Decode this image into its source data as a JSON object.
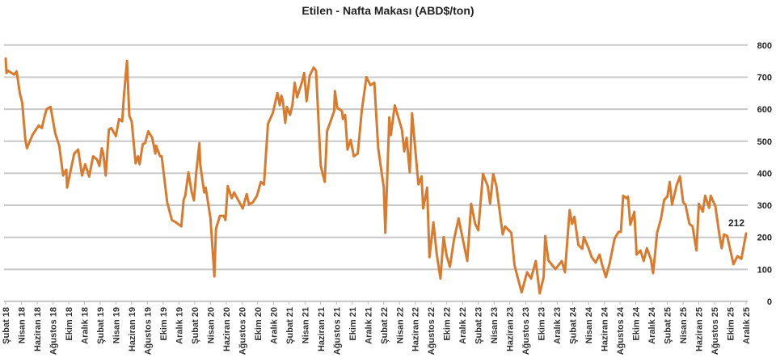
{
  "chart_data": {
    "type": "line",
    "title": "Etilen - Nafta Makası (ABD$/ton)",
    "xlabel": "",
    "ylabel": "",
    "ylim": [
      0,
      800
    ],
    "yticks": [
      0,
      100,
      200,
      300,
      400,
      500,
      600,
      700,
      800
    ],
    "y_axis_side": "right",
    "grid": true,
    "x_unit": "months since Şubat 18",
    "x_tick_labels": [
      "Şubat 18",
      "Nisan 18",
      "Haziran 18",
      "Ağustos 18",
      "Ekim 18",
      "Aralık 18",
      "Şubat 19",
      "Nisan 19",
      "Haziran 19",
      "Ağustos 19",
      "Ekim 19",
      "Aralık 19",
      "Şubat 20",
      "Nisan 20",
      "Haziran 20",
      "Ağustos 20",
      "Ekim 20",
      "Aralık 20",
      "Şubat 21",
      "Nisan 21",
      "Haziran 21",
      "Ağustos 21",
      "Ekim 21",
      "Aralık 21",
      "Şubat 22",
      "Nisan 22",
      "Haziran 22",
      "Ağustos 22",
      "Ekim 22",
      "Aralık 22",
      "Şubat 23",
      "Nisan 23",
      "Haziran 23",
      "Ağustos 23",
      "Ekim 23",
      "Aralık 23",
      "Şubat 24",
      "Nisan 24",
      "Haziran 24",
      "Ağustos 24",
      "Ekim 24",
      "Aralık 24",
      "Şubat 25",
      "Nisan 25",
      "Haziran 25",
      "Ağustos 25",
      "Ekim 25",
      "Aralık 25"
    ],
    "series": [
      {
        "name": "Etilen - Nafta Makası",
        "color": "#D97B2E",
        "last_value_label": "212",
        "points": [
          [
            0,
            758
          ],
          [
            0.1,
            713
          ],
          [
            0.3,
            720
          ],
          [
            1.1,
            708
          ],
          [
            1.4,
            718
          ],
          [
            1.8,
            650
          ],
          [
            2.1,
            620
          ],
          [
            2.5,
            504
          ],
          [
            2.7,
            478
          ],
          [
            3.4,
            519
          ],
          [
            4.2,
            549
          ],
          [
            4.6,
            541
          ],
          [
            4.9,
            574
          ],
          [
            5.2,
            600
          ],
          [
            5.7,
            607
          ],
          [
            6.3,
            524
          ],
          [
            6.8,
            486
          ],
          [
            7.3,
            393
          ],
          [
            7.7,
            411
          ],
          [
            7.8,
            355
          ],
          [
            8.7,
            461
          ],
          [
            9.2,
            474
          ],
          [
            9.7,
            393
          ],
          [
            10.1,
            428
          ],
          [
            10.6,
            390
          ],
          [
            11.1,
            453
          ],
          [
            11.6,
            443
          ],
          [
            11.9,
            423
          ],
          [
            12.2,
            478
          ],
          [
            12.4,
            461
          ],
          [
            12.7,
            393
          ],
          [
            13.1,
            536
          ],
          [
            13.4,
            541
          ],
          [
            14.0,
            516
          ],
          [
            14.4,
            569
          ],
          [
            14.8,
            562
          ],
          [
            15.0,
            637
          ],
          [
            15.4,
            751
          ],
          [
            15.7,
            579
          ],
          [
            16.0,
            562
          ],
          [
            16.5,
            431
          ],
          [
            16.8,
            453
          ],
          [
            17.0,
            428
          ],
          [
            17.4,
            491
          ],
          [
            17.7,
            494
          ],
          [
            18.1,
            531
          ],
          [
            18.6,
            511
          ],
          [
            19.0,
            461
          ],
          [
            19.1,
            486
          ],
          [
            19.6,
            453
          ],
          [
            19.8,
            453
          ],
          [
            20.5,
            310
          ],
          [
            21.1,
            254
          ],
          [
            21.6,
            247
          ],
          [
            22.3,
            234
          ],
          [
            22.6,
            317
          ],
          [
            22.8,
            330
          ],
          [
            23.2,
            403
          ],
          [
            23.6,
            343
          ],
          [
            23.9,
            315
          ],
          [
            24.2,
            403
          ],
          [
            24.6,
            494
          ],
          [
            24.7,
            428
          ],
          [
            25.2,
            340
          ],
          [
            25.4,
            355
          ],
          [
            26.0,
            259
          ],
          [
            26.5,
            78
          ],
          [
            26.7,
            227
          ],
          [
            27.2,
            267
          ],
          [
            27.7,
            267
          ],
          [
            27.9,
            254
          ],
          [
            28.2,
            360
          ],
          [
            28.7,
            322
          ],
          [
            29.0,
            340
          ],
          [
            30.1,
            290
          ],
          [
            30.6,
            335
          ],
          [
            30.9,
            302
          ],
          [
            31.4,
            310
          ],
          [
            31.9,
            330
          ],
          [
            32.4,
            373
          ],
          [
            32.8,
            365
          ],
          [
            33.3,
            554
          ],
          [
            33.9,
            587
          ],
          [
            34.5,
            650
          ],
          [
            34.8,
            612
          ],
          [
            35.0,
            642
          ],
          [
            35.2,
            625
          ],
          [
            35.5,
            557
          ],
          [
            35.7,
            607
          ],
          [
            36.1,
            582
          ],
          [
            36.4,
            612
          ],
          [
            36.7,
            683
          ],
          [
            37.0,
            637
          ],
          [
            37.6,
            683
          ],
          [
            37.9,
            713
          ],
          [
            38.2,
            625
          ],
          [
            38.6,
            705
          ],
          [
            39.1,
            730
          ],
          [
            39.4,
            720
          ],
          [
            40.0,
            423
          ],
          [
            40.5,
            373
          ],
          [
            40.8,
            531
          ],
          [
            41.7,
            594
          ],
          [
            41.8,
            657
          ],
          [
            42.1,
            604
          ],
          [
            42.7,
            594
          ],
          [
            42.8,
            569
          ],
          [
            43.1,
            582
          ],
          [
            43.4,
            474
          ],
          [
            43.8,
            504
          ],
          [
            44.2,
            453
          ],
          [
            44.7,
            461
          ],
          [
            45.2,
            594
          ],
          [
            45.8,
            700
          ],
          [
            46.3,
            675
          ],
          [
            46.8,
            683
          ],
          [
            47.3,
            478
          ],
          [
            48.0,
            355
          ],
          [
            48.2,
            214
          ],
          [
            48.7,
            574
          ],
          [
            48.9,
            519
          ],
          [
            49.4,
            612
          ],
          [
            50.3,
            536
          ],
          [
            50.6,
            468
          ],
          [
            50.9,
            511
          ],
          [
            51.3,
            403
          ],
          [
            51.6,
            587
          ],
          [
            52.4,
            365
          ],
          [
            52.8,
            390
          ],
          [
            53.0,
            290
          ],
          [
            53.5,
            355
          ],
          [
            53.8,
            138
          ],
          [
            54.3,
            247
          ],
          [
            54.7,
            151
          ],
          [
            55.2,
            71
          ],
          [
            55.6,
            201
          ],
          [
            56.0,
            141
          ],
          [
            56.4,
            108
          ],
          [
            56.9,
            191
          ],
          [
            57.5,
            259
          ],
          [
            58.6,
            126
          ],
          [
            59.1,
            305
          ],
          [
            59.6,
            242
          ],
          [
            60.0,
            222
          ],
          [
            60.6,
            398
          ],
          [
            61.2,
            360
          ],
          [
            61.5,
            305
          ],
          [
            61.9,
            398
          ],
          [
            62.3,
            360
          ],
          [
            63.1,
            209
          ],
          [
            63.4,
            234
          ],
          [
            64.2,
            214
          ],
          [
            64.6,
            113
          ],
          [
            65.5,
            28
          ],
          [
            66.2,
            91
          ],
          [
            66.7,
            71
          ],
          [
            67.3,
            126
          ],
          [
            67.8,
            25
          ],
          [
            68.3,
            76
          ],
          [
            68.5,
            204
          ],
          [
            68.9,
            128
          ],
          [
            69.8,
            101
          ],
          [
            70.6,
            126
          ],
          [
            71.0,
            91
          ],
          [
            71.6,
            285
          ],
          [
            71.9,
            242
          ],
          [
            72.2,
            264
          ],
          [
            72.7,
            176
          ],
          [
            73.2,
            164
          ],
          [
            73.4,
            201
          ],
          [
            74.0,
            166
          ],
          [
            74.4,
            138
          ],
          [
            74.9,
            121
          ],
          [
            75.4,
            146
          ],
          [
            75.7,
            116
          ],
          [
            76.2,
            76
          ],
          [
            76.7,
            121
          ],
          [
            77.3,
            196
          ],
          [
            77.8,
            217
          ],
          [
            78.1,
            217
          ],
          [
            78.4,
            330
          ],
          [
            78.8,
            322
          ],
          [
            79.0,
            327
          ],
          [
            79.3,
            239
          ],
          [
            79.8,
            280
          ],
          [
            80.1,
            146
          ],
          [
            80.6,
            159
          ],
          [
            81.0,
            126
          ],
          [
            81.4,
            166
          ],
          [
            81.9,
            133
          ],
          [
            82.2,
            88
          ],
          [
            82.7,
            214
          ],
          [
            83.2,
            259
          ],
          [
            83.6,
            317
          ],
          [
            84.0,
            327
          ],
          [
            84.3,
            373
          ],
          [
            84.6,
            302
          ],
          [
            85.2,
            365
          ],
          [
            85.6,
            390
          ],
          [
            86.0,
            310
          ],
          [
            86.3,
            302
          ],
          [
            86.8,
            242
          ],
          [
            87.2,
            234
          ],
          [
            87.7,
            159
          ],
          [
            88.0,
            305
          ],
          [
            88.5,
            280
          ],
          [
            88.8,
            330
          ],
          [
            89.3,
            292
          ],
          [
            89.5,
            330
          ],
          [
            90.1,
            297
          ],
          [
            90.6,
            209
          ],
          [
            90.9,
            166
          ],
          [
            91.2,
            209
          ],
          [
            91.6,
            204
          ],
          [
            92.4,
            116
          ],
          [
            92.9,
            141
          ],
          [
            93.4,
            133
          ],
          [
            94.0,
            212
          ]
        ]
      }
    ]
  }
}
